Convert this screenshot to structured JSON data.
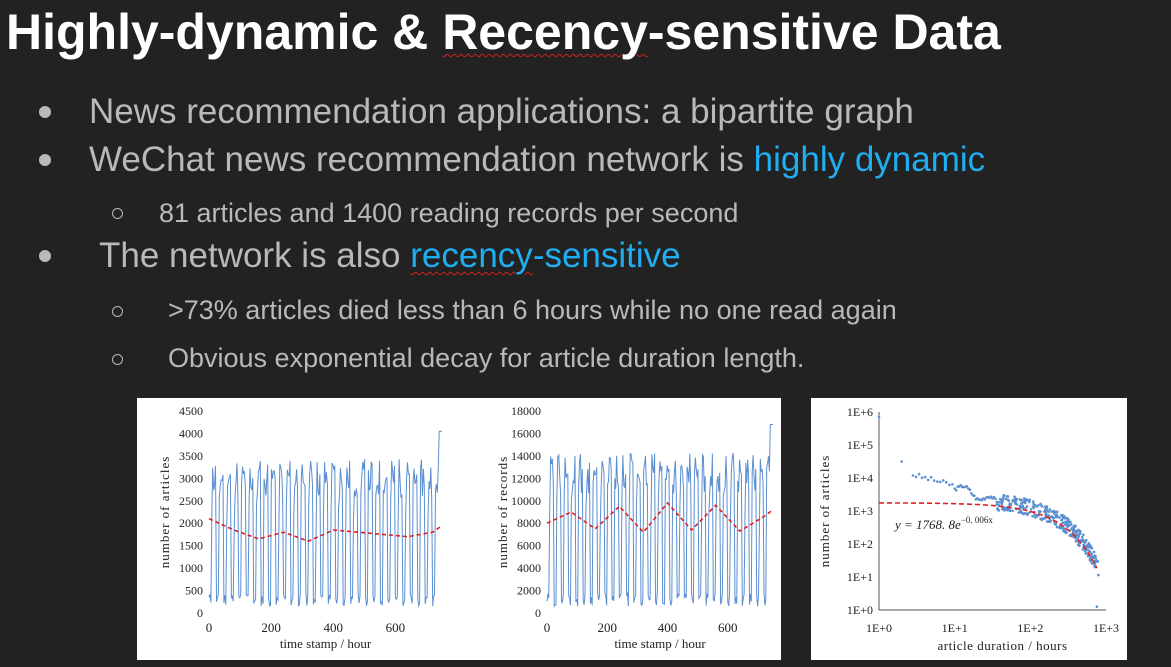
{
  "slide": {
    "title_part1": "Highly-dynamic & ",
    "title_part2": "Recency",
    "title_part3": "-sensitive Data",
    "bullets": {
      "b1": "News recommendation applications: a bipartite graph",
      "b2_text": "WeChat news recommendation network is ",
      "b2_highlight": "highly dynamic",
      "b2_sub": "81 articles and 1400 reading records per second",
      "b3_text": "The network is also ",
      "b3_highlight_part1": "recency",
      "b3_highlight_part2": "-sensitive",
      "b3_sub1": ">73% articles died less than 6 hours while no one read again",
      "b3_sub2": "Obvious exponential decay for article duration length."
    },
    "colors": {
      "background": "#222222",
      "title": "#ffffff",
      "text": "#b9b9b9",
      "highlight": "#1faef0",
      "series_line": "#5b8fd0",
      "trend_line": "#e02020"
    }
  },
  "chart_data": [
    {
      "type": "line",
      "xlabel": "time stamp / hour",
      "ylabel": "number of articles",
      "xlim": [
        0,
        750
      ],
      "ylim": [
        0,
        4500
      ],
      "xticks": [
        "0",
        "200",
        "400",
        "600"
      ],
      "yticks": [
        "0",
        "500",
        "1000",
        "1500",
        "2000",
        "2500",
        "3000",
        "3500",
        "4000",
        "4500"
      ],
      "series": [
        {
          "values_desc": "daily oscillation between ~150 and ~3300, peak 4050 at end",
          "min": 150,
          "max": 4050,
          "period_hours": 24
        },
        {
          "style": "dashed",
          "values_desc": "smoothed mean",
          "x": [
            0,
            80,
            160,
            240,
            320,
            400,
            480,
            560,
            640,
            720,
            750
          ],
          "y": [
            2100,
            1850,
            1650,
            1800,
            1600,
            1850,
            1800,
            1750,
            1700,
            1800,
            1950
          ]
        }
      ]
    },
    {
      "type": "line",
      "xlabel": "time stamp / hour",
      "ylabel": "number of records",
      "xlim": [
        0,
        750
      ],
      "ylim": [
        0,
        18000
      ],
      "xticks": [
        "0",
        "200",
        "400",
        "600"
      ],
      "yticks": [
        "0",
        "2000",
        "4000",
        "6000",
        "8000",
        "10000",
        "12000",
        "14000",
        "16000",
        "18000"
      ],
      "series": [
        {
          "values_desc": "daily oscillation between ~600 and ~16000",
          "min": 600,
          "max": 16800,
          "period_hours": 24
        },
        {
          "style": "dashed",
          "values_desc": "smoothed mean",
          "x": [
            0,
            80,
            160,
            240,
            320,
            400,
            480,
            560,
            640,
            720,
            750
          ],
          "y": [
            8000,
            9000,
            7500,
            9500,
            7200,
            9800,
            7400,
            9600,
            7300,
            8600,
            9200
          ]
        }
      ]
    },
    {
      "type": "scatter",
      "xscale": "log",
      "yscale": "log",
      "xlabel": "article duration / hours",
      "ylabel": "number of articles",
      "xticks": [
        "1E+0",
        "1E+1",
        "1E+2",
        "1E+3"
      ],
      "yticks": [
        "1E+0",
        "1E+1",
        "1E+2",
        "1E+3",
        "1E+4",
        "1E+5",
        "1E+6"
      ],
      "annotation_prefix": "y = 1768. 8e",
      "annotation_exponent": "−0. 006x",
      "fit": {
        "a": 1768.8,
        "b": -0.006
      }
    }
  ]
}
